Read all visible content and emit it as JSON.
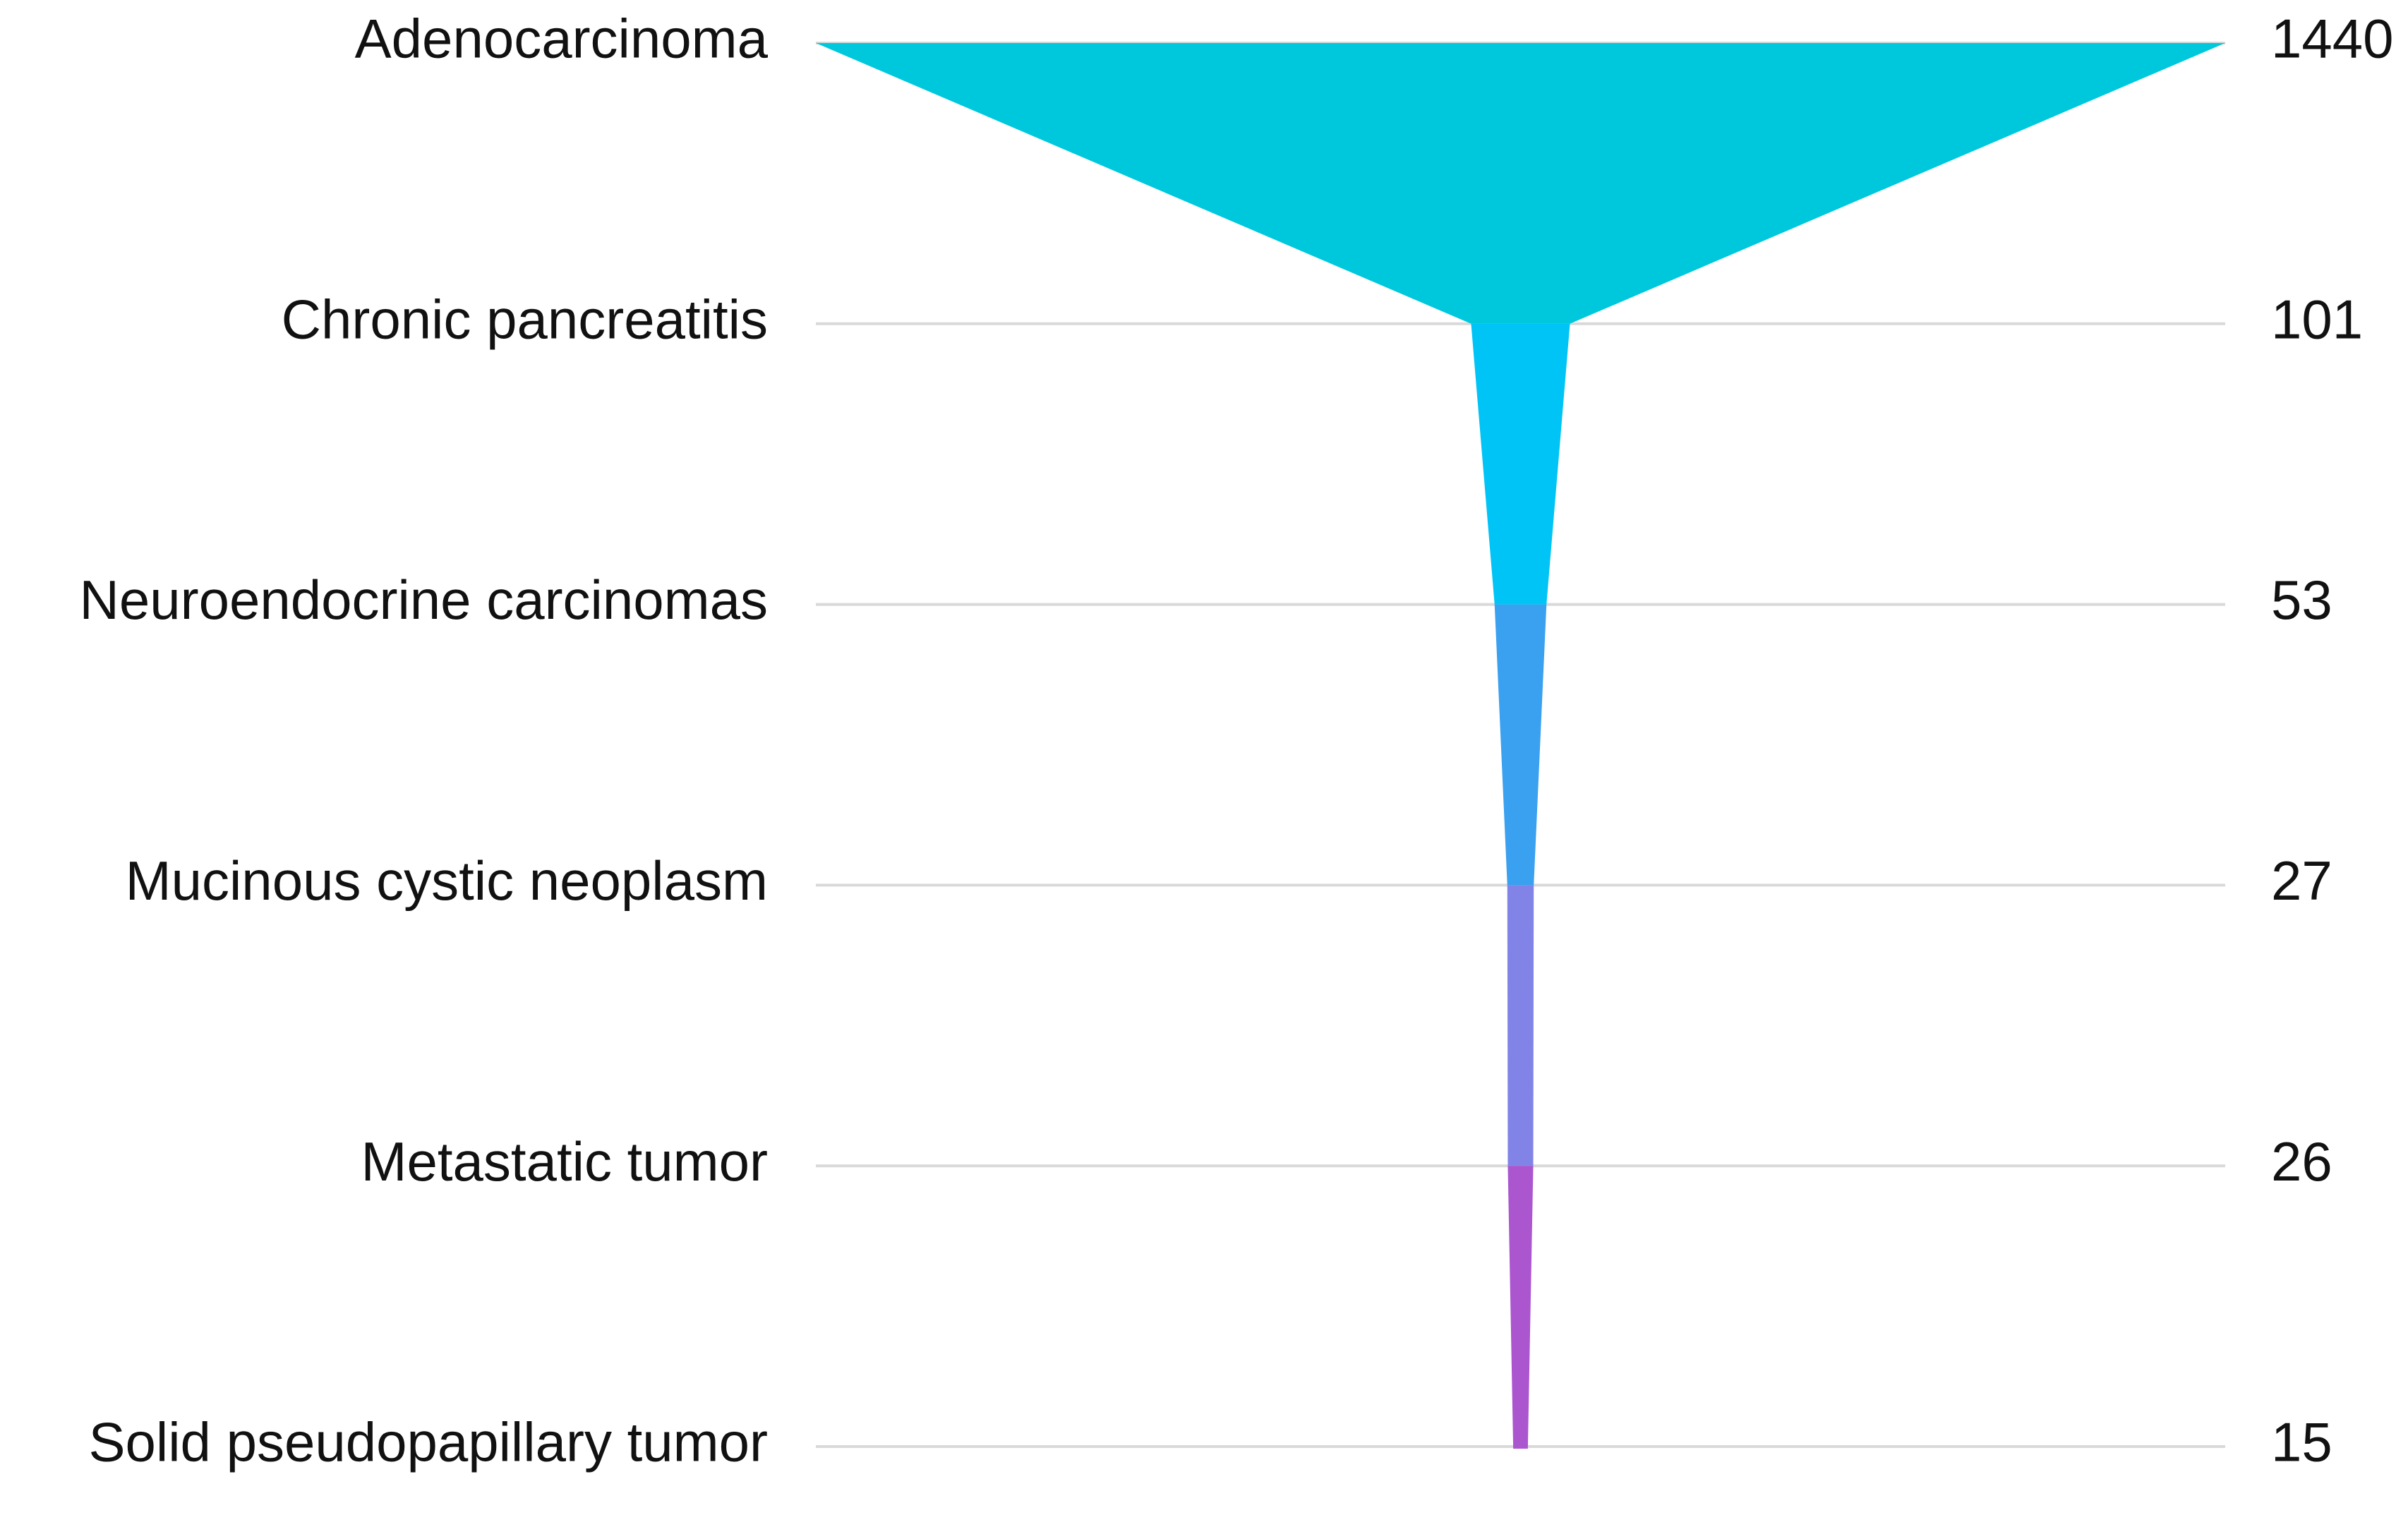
{
  "chart_data": {
    "type": "funnel",
    "categories": [
      "Adenocarcinoma",
      "Chronic pancreatitis",
      "Neuroendocrine carcinomas",
      "Mucinous cystic neoplasm",
      "Metastatic tumor",
      "Solid pseudopapillary tumor"
    ],
    "values": [
      1440,
      101,
      53,
      27,
      26,
      15
    ],
    "colors": [
      "#00c8dc",
      "#00c4f5",
      "#3aa0f0",
      "#8184e6",
      "#ab55cf",
      "#ab55cf"
    ]
  }
}
